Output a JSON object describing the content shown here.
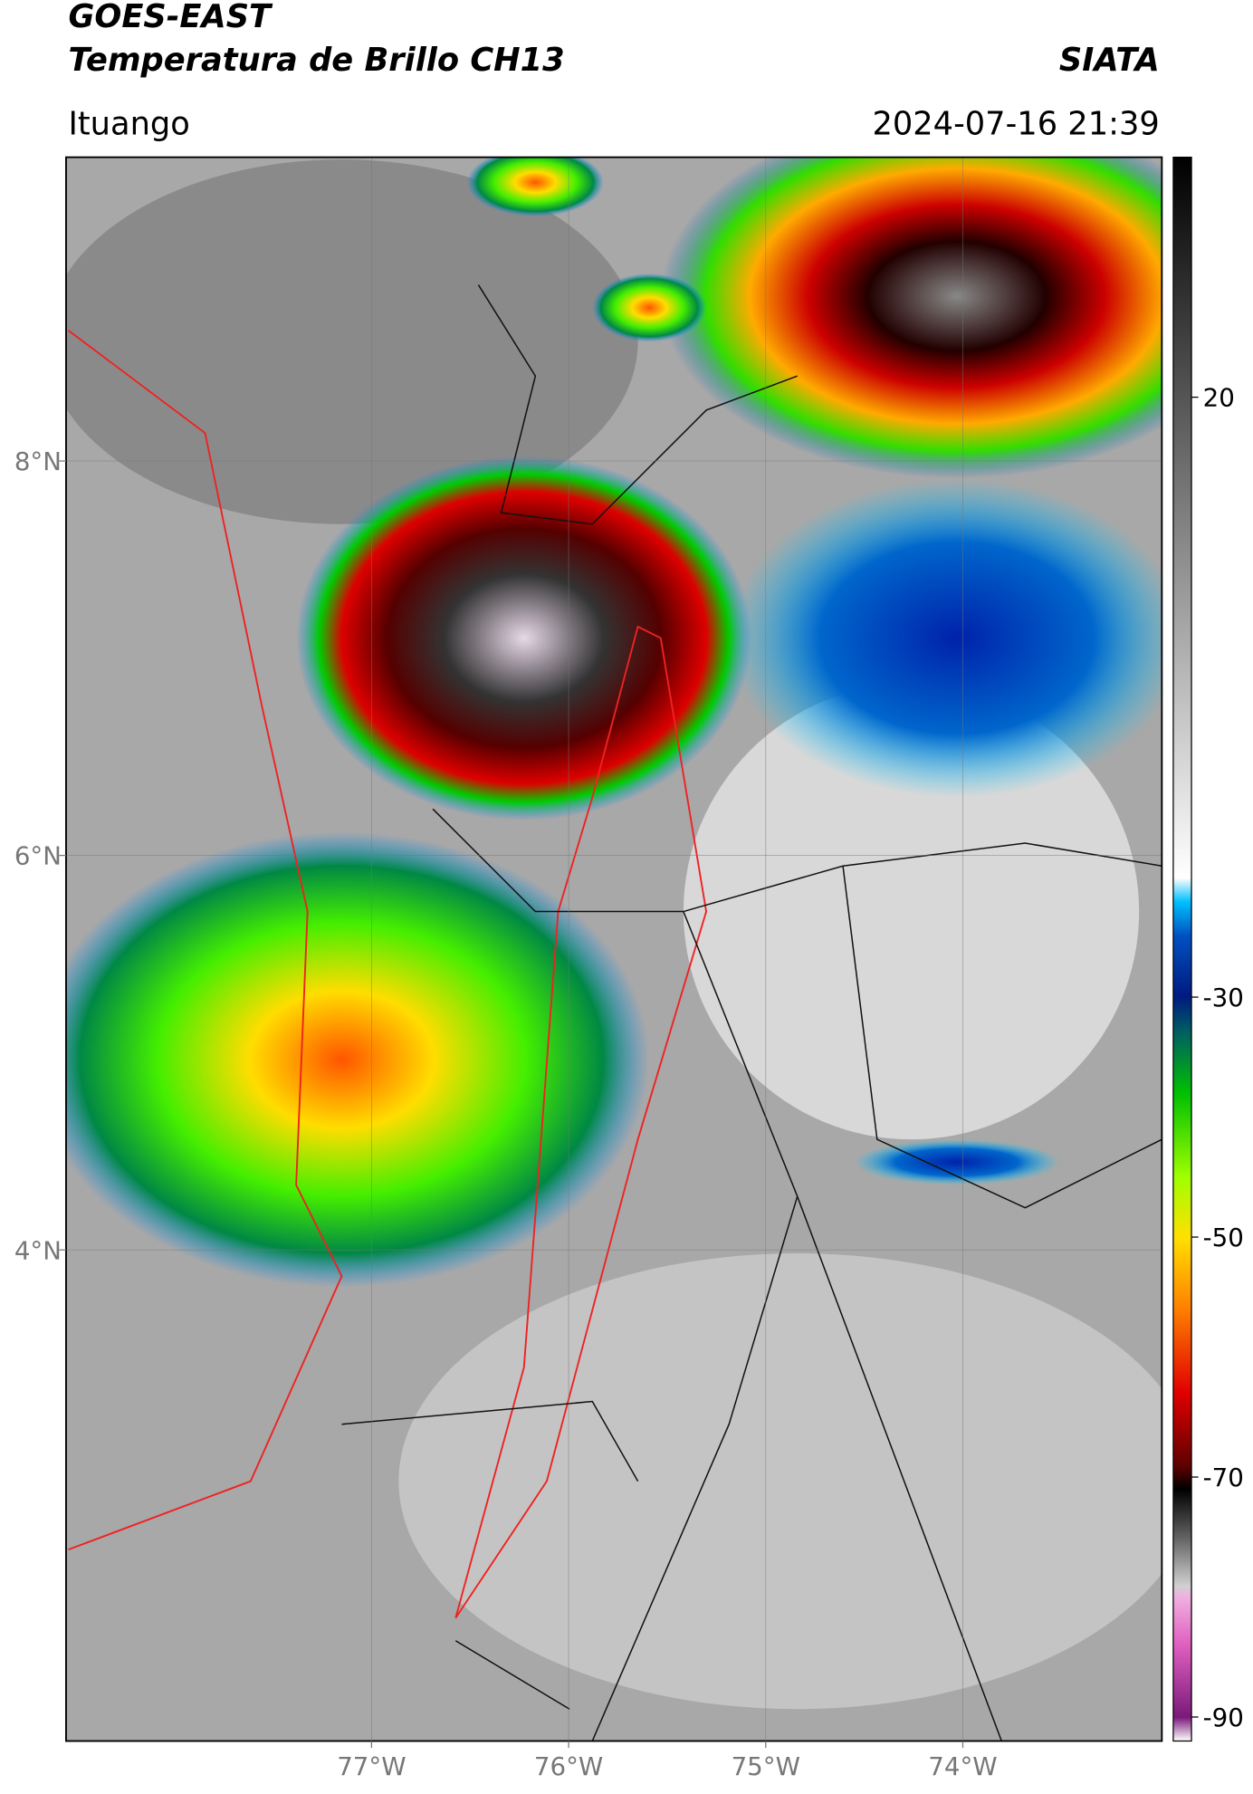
{
  "header": {
    "title_line1": "GOES-EAST",
    "title_line2": "Temperatura de Brillo CH13",
    "source": "SIATA",
    "location": "Ituango",
    "datetime": "2024-07-16 21:39"
  },
  "map": {
    "xlim": [
      -78.55,
      -72.99
    ],
    "ylim": [
      1.51,
      9.54
    ],
    "xticks": [
      {
        "value": -77,
        "label": "77°W"
      },
      {
        "value": -76,
        "label": "76°W"
      },
      {
        "value": -75,
        "label": "75°W"
      },
      {
        "value": -74,
        "label": "74°W"
      }
    ],
    "yticks": [
      {
        "value": 8,
        "label": "8°N"
      },
      {
        "value": 6,
        "label": "6°N"
      },
      {
        "value": 4,
        "label": "4°N"
      }
    ],
    "grid": true
  },
  "colorbar": {
    "lim": [
      -92,
      40
    ],
    "ticks": [
      20,
      -30,
      -50,
      -70,
      -90
    ]
  }
}
